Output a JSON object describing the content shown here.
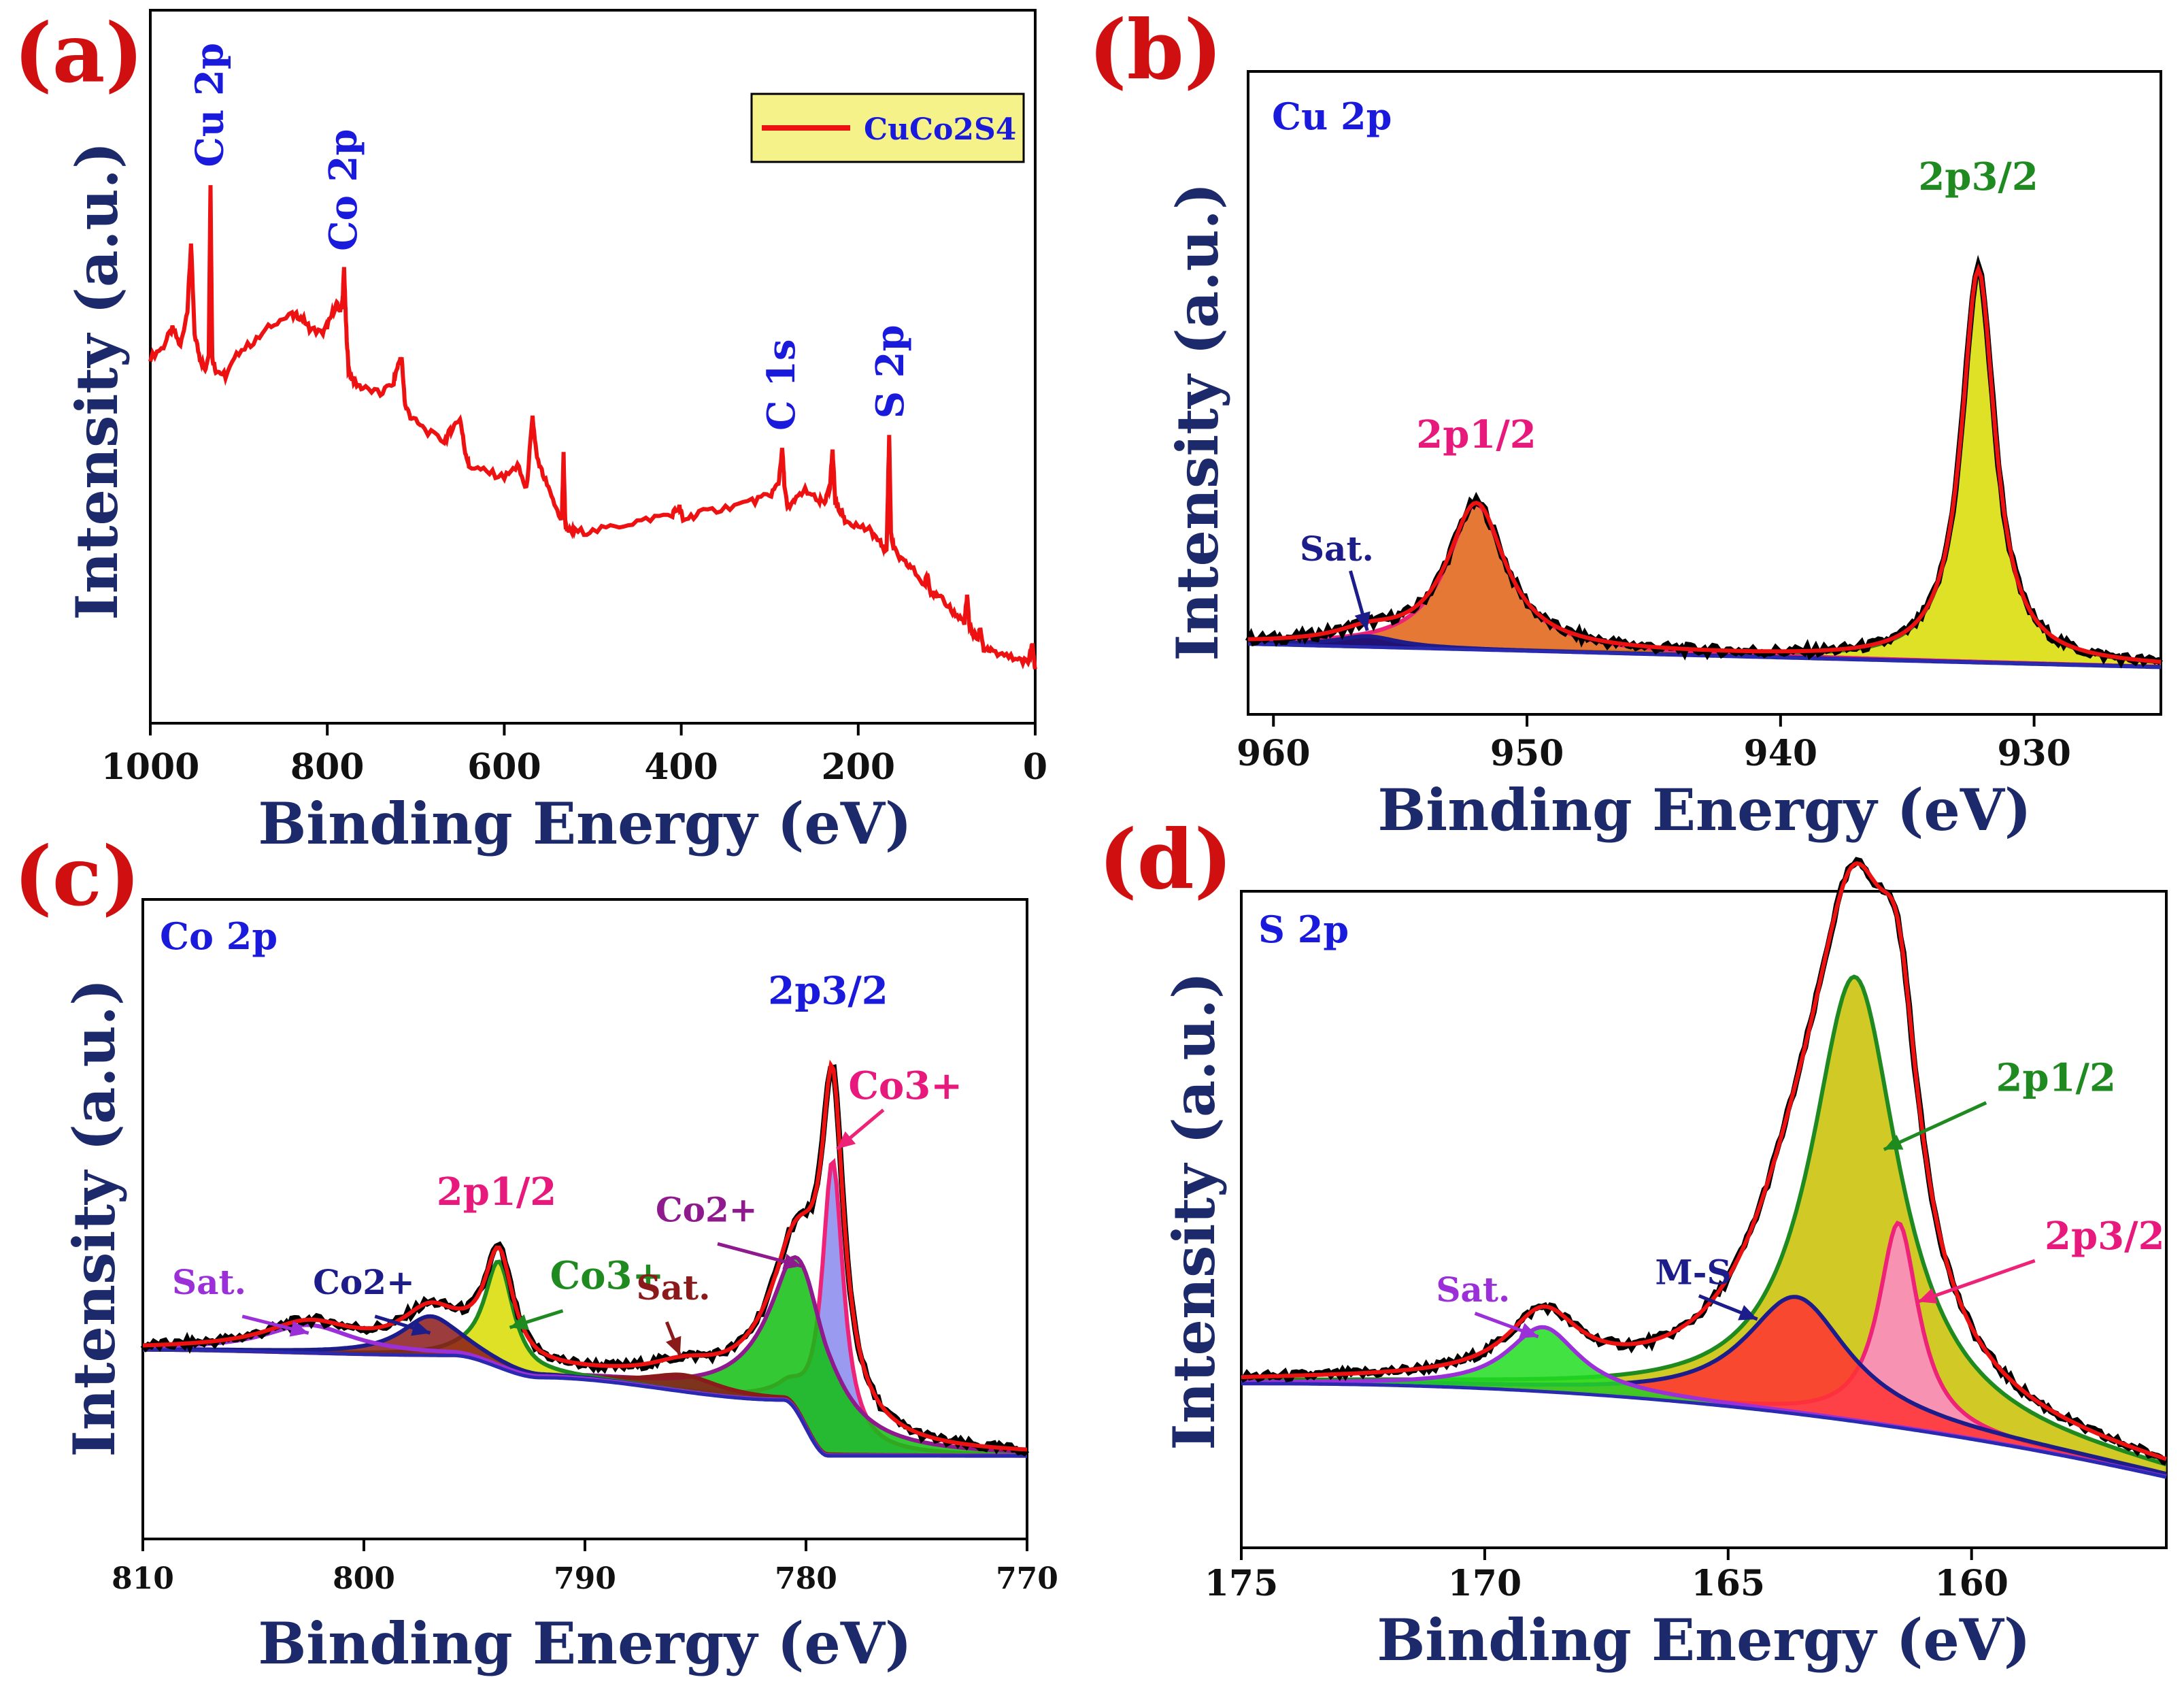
{
  "chart_data": [
    {
      "id": "a",
      "panel_label": "(a)",
      "type": "line",
      "xlabel": "Binding Energy (eV)",
      "ylabel": "Intensity (a.u.)",
      "xlim": [
        1000,
        0
      ],
      "ylim": [
        0,
        100
      ],
      "xticks": [
        "1000",
        "800",
        "600",
        "400",
        "200",
        "0"
      ],
      "legend": {
        "label": "CuCo2S4",
        "placement": "top-right"
      },
      "series": [
        {
          "name": "CuCo2S4",
          "color": "#ee1111",
          "x": [
            1000,
            985,
            975,
            966,
            958,
            954,
            950,
            944,
            938,
            934,
            932,
            930,
            926,
            915,
            900,
            880,
            860,
            840,
            830,
            820,
            805,
            798,
            790,
            786,
            783,
            781,
            779,
            776,
            770,
            760,
            740,
            725,
            720,
            716,
            712,
            705,
            690,
            668,
            660,
            650,
            645,
            640,
            620,
            600,
            585,
            575,
            568,
            563,
            555,
            545,
            535,
            533,
            531,
            527,
            520,
            500,
            470,
            440,
            410,
            402,
            398,
            380,
            350,
            320,
            300,
            290,
            286,
            283,
            280,
            272,
            260,
            245,
            238,
            232,
            229,
            226,
            222,
            215,
            200,
            185,
            175,
            168,
            165,
            163,
            160,
            150,
            140,
            125,
            122,
            118,
            110,
            100,
            90,
            80,
            77,
            74,
            70,
            65,
            62,
            58,
            50,
            35,
            20,
            8,
            3,
            0
          ],
          "y": [
            55,
            57,
            60,
            57,
            63,
            74,
            59,
            55,
            53,
            56,
            84,
            55,
            53,
            52,
            56,
            58,
            61,
            62,
            62,
            60,
            59,
            61,
            64,
            63,
            64,
            70,
            61,
            53,
            51,
            50,
            49,
            51,
            54,
            55,
            47,
            45,
            43,
            41,
            43,
            45,
            40,
            37,
            36,
            35,
            37,
            33,
            45,
            38,
            35,
            31,
            28,
            39,
            27,
            26,
            26,
            26,
            27,
            28,
            29,
            30,
            28,
            29,
            30,
            31,
            32,
            34,
            40,
            33,
            30,
            31,
            33,
            31,
            31,
            33,
            40,
            31,
            30,
            28,
            27,
            26,
            24,
            23,
            42,
            26,
            23,
            21,
            20,
            17,
            19,
            16,
            15,
            14,
            12,
            11,
            15,
            10,
            9,
            8,
            10,
            6,
            6,
            5,
            5,
            4,
            7,
            3
          ]
        }
      ],
      "annotations": [
        {
          "text": "Cu 2p",
          "x": 932,
          "y": 84
        },
        {
          "text": "Co 2p",
          "x": 781,
          "y": 70
        },
        {
          "text": "C 1s",
          "x": 286,
          "y": 40
        },
        {
          "text": "S 2p",
          "x": 163,
          "y": 42
        }
      ]
    },
    {
      "id": "b",
      "panel_label": "(b)",
      "type": "line",
      "corner_title": "Cu 2p",
      "xlabel": "Binding Energy (eV)",
      "ylabel": "Intensity (a.u.)",
      "xlim": [
        961,
        925
      ],
      "ylim": [
        0,
        100
      ],
      "xticks": [
        "960",
        "950",
        "940",
        "930"
      ],
      "fit_peaks": [
        {
          "name": "2p3/2",
          "center": 932.2,
          "width": 0.8,
          "height": 73,
          "fill": "#d8dc00",
          "edge": "#1f8a1f"
        },
        {
          "name": "2p1/2",
          "center": 952.0,
          "width": 1.4,
          "height": 27,
          "fill": "#e06010",
          "edge": "#ee2277"
        },
        {
          "name": "Sat.",
          "center": 956.3,
          "width": 1.5,
          "height": 2,
          "fill": "#000080",
          "edge": "#1c1c8a"
        }
      ],
      "baseline": [
        5.5,
        1.2
      ],
      "annotations": [
        {
          "text": "2p3/2",
          "x": 932.2,
          "y": 90
        },
        {
          "text": "2p1/2",
          "x": 952.0,
          "y": 42
        },
        {
          "text": "Sat.",
          "x": 957.5,
          "y": 21
        }
      ]
    },
    {
      "id": "c",
      "panel_label": "(c)",
      "type": "line",
      "corner_title": "Co 2p",
      "xlabel": "Binding Energy (eV)",
      "ylabel": "Intensity (a.u.)",
      "xlim": [
        810,
        770
      ],
      "ylim": [
        0,
        100
      ],
      "xticks": [
        "810",
        "800",
        "790",
        "780",
        "770"
      ],
      "fit_peaks": [
        {
          "name": "Co3+ (2p3/2)",
          "center": 778.8,
          "width": 0.6,
          "height": 53,
          "fill": "#8888ee",
          "edge": "#ee2277"
        },
        {
          "name": "Co2+ (2p3/2)",
          "center": 780.2,
          "width": 1.7,
          "height": 28,
          "fill": "#10c010",
          "edge": "#8e1a8e"
        },
        {
          "name": "Sat. (2p3/2)",
          "center": 785.5,
          "width": 2.0,
          "height": 3,
          "fill": "#8b1a1a",
          "edge": "#8b1a1a"
        },
        {
          "name": "Co3+ (2p1/2)",
          "center": 793.9,
          "width": 0.8,
          "height": 19,
          "fill": "#d8dc00",
          "edge": "#1f8a1f"
        },
        {
          "name": "Co2+ (2p1/2)",
          "center": 797.0,
          "width": 1.6,
          "height": 7,
          "fill": "#8b1a1a",
          "edge": "#1c1c8a"
        },
        {
          "name": "Sat. (2p1/2)",
          "center": 802.5,
          "width": 2.5,
          "height": 5,
          "fill": "#ffffff",
          "edge": "#9b30d9"
        }
      ],
      "baseline_points": [
        [
          810,
          30
        ],
        [
          796,
          29
        ],
        [
          792,
          25
        ],
        [
          781,
          21
        ],
        [
          779,
          11
        ],
        [
          770,
          11
        ]
      ],
      "annotations": [
        {
          "text": "2p3/2",
          "x": 779,
          "y": 92
        },
        {
          "text": "Co3+",
          "x": 775.5,
          "y": 75
        },
        {
          "text": "2p1/2",
          "x": 794,
          "y": 56
        },
        {
          "text": "Co2+",
          "x": 784.5,
          "y": 53
        },
        {
          "text": "Co3+",
          "x": 789,
          "y": 41
        },
        {
          "text": "Sat.",
          "x": 786,
          "y": 39
        },
        {
          "text": "Co2+",
          "x": 800,
          "y": 40
        },
        {
          "text": "Sat.",
          "x": 807,
          "y": 40
        }
      ]
    },
    {
      "id": "d",
      "panel_label": "(d)",
      "type": "line",
      "corner_title": "S 2p",
      "xlabel": "Binding Energy (eV)",
      "ylabel": "Intensity (a.u.)",
      "xlim": [
        175,
        156
      ],
      "ylim": [
        0,
        100
      ],
      "xticks": [
        "175",
        "170",
        "165",
        "160"
      ],
      "fit_peaks": [
        {
          "name": "2p1/2",
          "center": 162.4,
          "width": 1.1,
          "height": 76,
          "fill": "#c8c000",
          "edge": "#1f8a1f"
        },
        {
          "name": "2p3/2",
          "center": 161.5,
          "width": 0.5,
          "height": 35,
          "fill": "#ff88cc",
          "edge": "#ee2277"
        },
        {
          "name": "M-S",
          "center": 163.6,
          "width": 1.3,
          "height": 20,
          "fill": "#ff3333",
          "edge": "#1c1c8a"
        },
        {
          "name": "Sat.",
          "center": 168.8,
          "width": 0.9,
          "height": 11,
          "fill": "#22dd22",
          "edge": "#9b30d9"
        }
      ],
      "baseline": [
        24,
        8
      ],
      "annotations": [
        {
          "text": "2p1/2",
          "x": 159.5,
          "y": 74
        },
        {
          "text": "2p3/2",
          "x": 158.5,
          "y": 47
        },
        {
          "text": "M-S",
          "x": 166.5,
          "y": 41
        },
        {
          "text": "Sat.",
          "x": 171,
          "y": 38
        }
      ]
    }
  ]
}
